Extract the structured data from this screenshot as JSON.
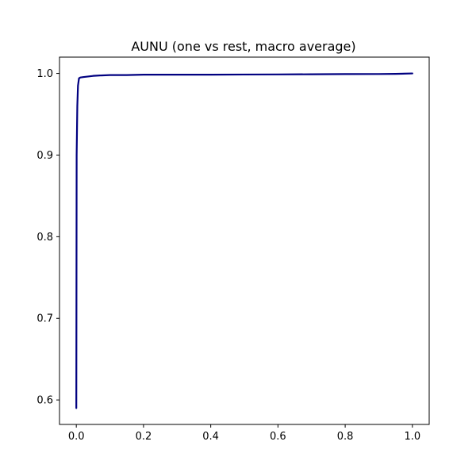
{
  "chart_data": {
    "type": "line",
    "title": "AUNU (one vs rest, macro average)",
    "xlabel": "",
    "ylabel": "",
    "xlim": [
      -0.05,
      1.05
    ],
    "ylim": [
      0.57,
      1.02
    ],
    "xticks": [
      0.0,
      0.2,
      0.4,
      0.6,
      0.8,
      1.0
    ],
    "xtick_labels": [
      "0.0",
      "0.2",
      "0.4",
      "0.6",
      "0.8",
      "1.0"
    ],
    "yticks": [
      0.6,
      0.7,
      0.8,
      0.9,
      1.0
    ],
    "ytick_labels": [
      "0.6",
      "0.7",
      "0.8",
      "0.9",
      "1.0"
    ],
    "grid": false,
    "legend": "none",
    "series": [
      {
        "color": "#000080",
        "x": [
          0.0,
          0.001,
          0.002,
          0.003,
          0.005,
          0.008,
          0.012,
          0.02,
          0.03,
          0.05,
          0.07,
          0.1,
          0.15,
          0.2,
          0.3,
          0.4,
          0.5,
          0.6,
          0.7,
          0.8,
          0.9,
          0.95,
          1.0
        ],
        "y": [
          0.59,
          0.9,
          0.93,
          0.96,
          0.985,
          0.994,
          0.995,
          0.9955,
          0.996,
          0.997,
          0.9975,
          0.998,
          0.998,
          0.9985,
          0.9985,
          0.9985,
          0.9987,
          0.9988,
          0.999,
          0.9992,
          0.9993,
          0.9995,
          1.0
        ]
      }
    ]
  }
}
